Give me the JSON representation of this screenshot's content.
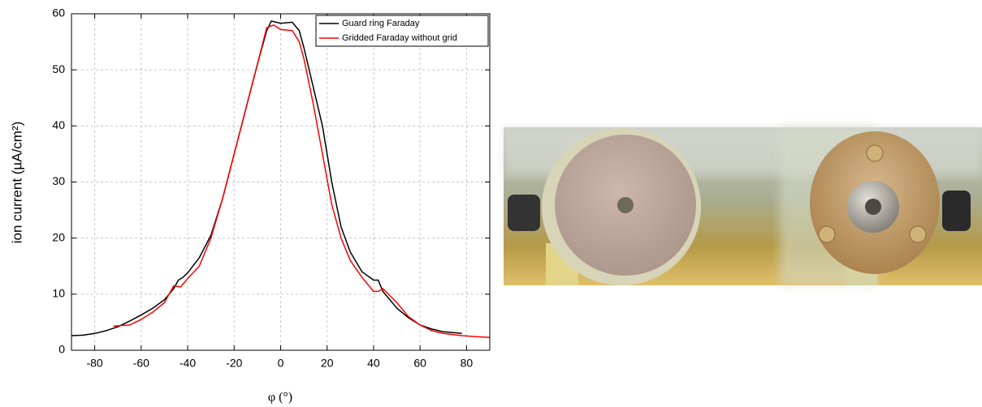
{
  "chart_data": {
    "type": "line",
    "xlabel": "φ (°)",
    "ylabel": "ion current (µA/cm²)",
    "xlim": [
      -90,
      90
    ],
    "ylim": [
      0,
      60
    ],
    "xticks": [
      -80,
      -60,
      -40,
      -20,
      0,
      20,
      40,
      60,
      80
    ],
    "yticks": [
      0,
      10,
      20,
      30,
      40,
      50,
      60
    ],
    "grid": true,
    "legend": "upper right",
    "series": [
      {
        "name": "Guard ring Faraday",
        "color": "#000000",
        "x": [
          -90,
          -85,
          -80,
          -75,
          -70,
          -65,
          -60,
          -55,
          -50,
          -46,
          -44,
          -42,
          -40,
          -35,
          -30,
          -25,
          -20,
          -15,
          -10,
          -6,
          -4,
          0,
          5,
          8,
          10,
          14,
          18,
          22,
          26,
          30,
          35,
          40,
          42,
          44,
          50,
          55,
          60,
          65,
          70,
          78
        ],
        "values": [
          2.6,
          2.7,
          3.0,
          3.5,
          4.2,
          5.2,
          6.3,
          7.5,
          9.0,
          11.0,
          12.5,
          13.0,
          13.8,
          16.5,
          20.5,
          27,
          35,
          43,
          51,
          57,
          58.7,
          58.3,
          58.5,
          57,
          54,
          47,
          40,
          30,
          22,
          17.5,
          14,
          12.5,
          12.5,
          10.5,
          7.5,
          5.8,
          4.5,
          3.8,
          3.3,
          3.0
        ]
      },
      {
        "name": "Gridded Faraday without grid",
        "color": "#ff0000",
        "x": [
          -72,
          -65,
          -60,
          -55,
          -50,
          -46,
          -43,
          -40,
          -35,
          -30,
          -25,
          -20,
          -15,
          -10,
          -6,
          -3,
          0,
          5,
          8,
          10,
          14,
          18,
          22,
          26,
          30,
          35,
          40,
          42,
          44,
          50,
          55,
          60,
          65,
          70,
          78,
          85,
          90
        ],
        "values": [
          4.3,
          4.5,
          5.5,
          6.8,
          8.5,
          11.5,
          11.3,
          12.8,
          15,
          20,
          27,
          35,
          43,
          51,
          57.5,
          58,
          57.2,
          57,
          55,
          52,
          44,
          35,
          26,
          20,
          16,
          13,
          10.5,
          10.5,
          11,
          8.5,
          6,
          4.5,
          3.5,
          3,
          2.6,
          2.4,
          2.3
        ]
      }
    ]
  }
}
